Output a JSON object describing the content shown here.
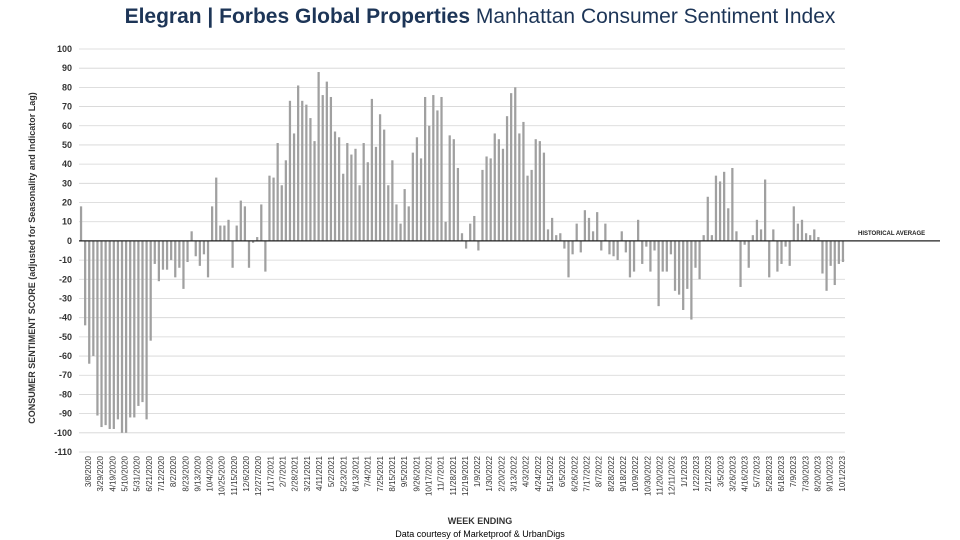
{
  "title": {
    "brand": "Elegran | Forbes Global Properties",
    "subtitle": "Manhattan Consumer Sentiment Index"
  },
  "footer": "Data courtesy of Marketproof & UrbanDigs",
  "chart_data": {
    "type": "bar",
    "xlabel": "WEEK ENDING",
    "ylabel": "CONSUMER SENTIMENT SCORE (adjusted for Seasonality and Indicator Lag)",
    "ylim": [
      -110,
      100
    ],
    "yticks": [
      100,
      90,
      80,
      70,
      60,
      50,
      40,
      30,
      20,
      10,
      0,
      -10,
      -20,
      -30,
      -40,
      -50,
      -60,
      -70,
      -80,
      -90,
      -100,
      -110
    ],
    "grid": true,
    "reference_line": {
      "label": "HISTORICAL AVERAGE",
      "value": 0
    },
    "bar_color": "#a0a0a0",
    "x_tick_labels": [
      "3/8/2020",
      "3/29/2020",
      "4/19/2020",
      "5/10/2020",
      "5/31/2020",
      "6/21/2020",
      "7/12/2020",
      "8/2/2020",
      "8/23/2020",
      "9/13/2020",
      "10/4/2020",
      "10/25/2020",
      "11/15/2020",
      "12/6/2020",
      "12/27/2020",
      "1/17/2021",
      "2/7/2021",
      "2/28/2021",
      "3/21/2021",
      "4/11/2021",
      "5/2/2021",
      "5/23/2021",
      "6/13/2021",
      "7/4/2021",
      "7/25/2021",
      "8/15/2021",
      "9/5/2021",
      "9/26/2021",
      "10/17/2021",
      "11/7/2021",
      "11/28/2021",
      "12/19/2021",
      "1/9/2022",
      "1/30/2022",
      "2/20/2022",
      "3/13/2022",
      "4/3/2022",
      "4/24/2022",
      "5/15/2022",
      "6/5/2022",
      "6/26/2022",
      "7/17/2022",
      "8/7/2022",
      "8/28/2022",
      "9/18/2022",
      "10/9/2022",
      "10/30/2022",
      "11/20/2022",
      "12/11/2022",
      "1/1/2023",
      "1/22/2023",
      "2/12/2023",
      "3/5/2023",
      "3/26/2023",
      "4/16/2023",
      "5/7/2023",
      "5/28/2023",
      "6/18/2023",
      "7/9/2023",
      "7/30/2023",
      "8/20/2023",
      "9/10/2023",
      "10/1/2023"
    ],
    "values": [
      18,
      -44,
      -64,
      -60,
      -91,
      -97,
      -96,
      -98,
      -98,
      -93,
      -100,
      -100,
      -92,
      -92,
      -86,
      -84,
      -93,
      -52,
      -12,
      -21,
      -15,
      -15,
      -10,
      -19,
      -14,
      -25,
      -11,
      5,
      -8,
      -13,
      -7,
      -19,
      18,
      33,
      8,
      8,
      11,
      -14,
      8,
      21,
      18,
      -14,
      -1,
      2,
      19,
      -16,
      34,
      33,
      51,
      29,
      42,
      73,
      56,
      81,
      73,
      71,
      64,
      52,
      88,
      76,
      83,
      75,
      57,
      54,
      35,
      51,
      45,
      48,
      29,
      51,
      41,
      74,
      49,
      66,
      58,
      29,
      42,
      19,
      9,
      27,
      18,
      46,
      54,
      43,
      75,
      60,
      76,
      68,
      75,
      10,
      55,
      53,
      38,
      4,
      -4,
      9,
      13,
      -5,
      37,
      44,
      43,
      56,
      53,
      48,
      65,
      77,
      80,
      56,
      62,
      34,
      37,
      53,
      52,
      46,
      6,
      12,
      3,
      4,
      -4,
      -19,
      -7,
      9,
      -6,
      16,
      12,
      5,
      15,
      -5,
      9,
      -7,
      -8,
      -10,
      5,
      -6,
      -19,
      -16,
      11,
      -12,
      -3,
      -16,
      -5,
      -34,
      -16,
      -16,
      -7,
      -26,
      -28,
      -36,
      -25,
      -41,
      -14,
      -20,
      3,
      23,
      3,
      34,
      31,
      36,
      17,
      38,
      5,
      -24,
      -2,
      -14,
      3,
      11,
      6,
      32,
      -19,
      6,
      -16,
      -12,
      -3,
      -13,
      18,
      9,
      11,
      4,
      3,
      6,
      2,
      -17,
      -26,
      -13,
      -23,
      -12,
      -11
    ]
  }
}
